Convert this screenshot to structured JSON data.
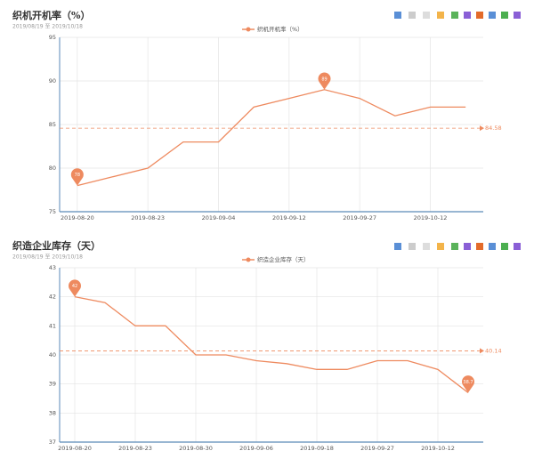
{
  "chart_data": [
    {
      "type": "line",
      "title": "织机开机率（%）",
      "subtitle": "2019/08/19 至 2019/10/18",
      "legend": "织机开机率（%）",
      "categories": [
        "2019-08-20",
        null,
        "2019-08-23",
        null,
        "2019-09-04",
        null,
        "2019-09-12",
        null,
        "2019-09-27",
        null,
        "2019-10-12",
        null
      ],
      "values": [
        78,
        79,
        80,
        83,
        83,
        87,
        88,
        89,
        88,
        86,
        87,
        87
      ],
      "color": "#ee8a5f",
      "ylim": [
        75,
        95
      ],
      "yticks": [
        75,
        80,
        85,
        90,
        95
      ],
      "average": 84.58,
      "max_index": 7,
      "min_index": 0,
      "grid": true
    },
    {
      "type": "line",
      "title": "织造企业库存（天）",
      "subtitle": "2019/08/19 至 2019/10/18",
      "legend": "织造企业库存（天）",
      "categories": [
        "2019-08-20",
        null,
        "2019-08-23",
        null,
        "2019-08-30",
        null,
        "2019-09-06",
        null,
        "2019-09-18",
        null,
        "2019-09-27",
        null,
        "2019-10-12",
        null
      ],
      "values": [
        42,
        41.8,
        41,
        41,
        40,
        40,
        39.8,
        39.7,
        39.5,
        39.5,
        39.8,
        39.8,
        39.5,
        38.7
      ],
      "color": "#ee8a5f",
      "ylim": [
        37,
        43
      ],
      "yticks": [
        37,
        38,
        39,
        40,
        41,
        42,
        43
      ],
      "average": 40.14,
      "max_index": 0,
      "min_index": 13,
      "grid": true
    }
  ]
}
